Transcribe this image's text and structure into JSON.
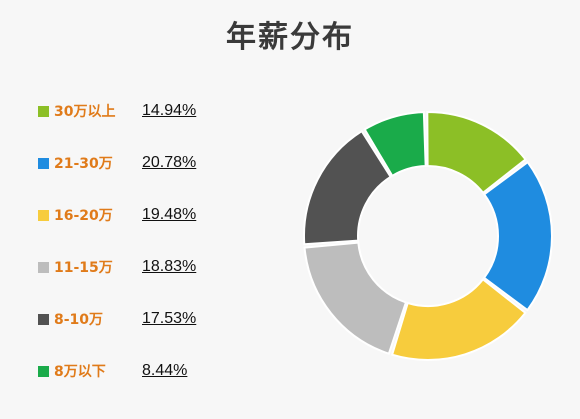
{
  "chart_data": {
    "type": "pie",
    "title": "年薪分布",
    "categories": [
      "30万以上",
      "21-30万",
      "16-20万",
      "11-15万",
      "8-10万",
      "8万以下"
    ],
    "values": [
      14.94,
      20.78,
      19.48,
      18.83,
      17.53,
      8.44
    ],
    "value_labels": [
      "14.94%",
      "20.78%",
      "19.48%",
      "18.83%",
      "17.53%",
      "8.44%"
    ],
    "colors": [
      "#8cbf26",
      "#1f8ce0",
      "#f7cc3d",
      "#bdbdbd",
      "#525252",
      "#1aab4a"
    ],
    "legend": "left",
    "donut": true
  }
}
